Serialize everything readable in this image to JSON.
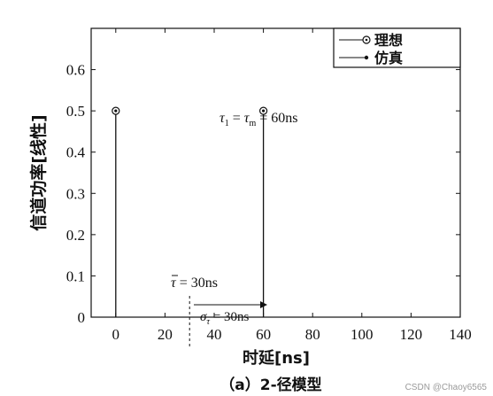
{
  "chart_data": {
    "type": "stem",
    "xlabel": "时延[ns]",
    "ylabel": "信道功率[线性]",
    "caption": "（a）2-径模型",
    "xlim": [
      -10,
      140
    ],
    "ylim": [
      0,
      0.7
    ],
    "x_ticks": [
      "0",
      "20",
      "40",
      "60",
      "80",
      "100",
      "120",
      "140"
    ],
    "y_ticks": [
      "0",
      "0.1",
      "0.2",
      "0.3",
      "0.4",
      "0.5",
      "0.6"
    ],
    "grid": false,
    "legend_position": "top-right",
    "series": [
      {
        "name": "理想",
        "marker": "circle-dot",
        "points": [
          {
            "x": 0,
            "y": 0.5
          },
          {
            "x": 60,
            "y": 0.5
          }
        ]
      },
      {
        "name": "仿真",
        "marker": "dot",
        "points": [
          {
            "x": 0,
            "y": 0.5
          },
          {
            "x": 60,
            "y": 0.5
          }
        ]
      }
    ],
    "annotations": {
      "tau_max": {
        "tau": "τ",
        "sub1": "1",
        "eq1": " = ",
        "tau2": "τ",
        "sub2": "m",
        "eq2": " = 60ns"
      },
      "tau_mean": {
        "symbol": "τ",
        "text": " = 30ns",
        "x_value": 30
      },
      "sigma": {
        "symbol": "σ",
        "sub": "τ",
        "text": " = 30ns"
      }
    }
  },
  "watermark": "CSDN @Chaoy6565"
}
